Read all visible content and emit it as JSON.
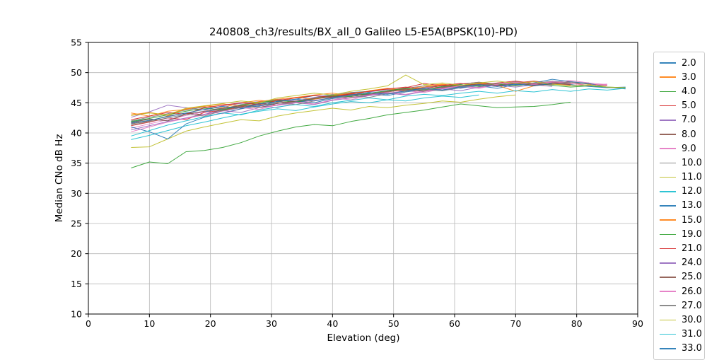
{
  "chart_data": {
    "type": "line",
    "title": "240808_ch3/results/BX_all_0 Galileo L5-E5A(BPSK(10)-PD)",
    "xlabel": "Elevation (deg)",
    "ylabel": "Median CNo dB Hz",
    "xlim": [
      0,
      90
    ],
    "ylim": [
      10,
      55
    ],
    "xticks": [
      0,
      10,
      20,
      30,
      40,
      50,
      60,
      70,
      80,
      90
    ],
    "yticks": [
      10,
      15,
      20,
      25,
      30,
      35,
      40,
      45,
      50,
      55
    ],
    "grid": true,
    "grid_color": "#b8b8b8",
    "axis_color": "#000000",
    "legend": {
      "position": "right-outside",
      "last_entry_clipped": true
    },
    "x_start": 7,
    "x_step": 3,
    "series": [
      {
        "name": "2.0",
        "color": "#1f77b4",
        "values": [
          41.8,
          42.3,
          42.0,
          43.2,
          43.5,
          44.0,
          44.6,
          44.4,
          45.3,
          45.6,
          46.2,
          46.0,
          46.7,
          46.9,
          47.3,
          47.0,
          47.6,
          47.8,
          47.5,
          48.0,
          47.8,
          48.2,
          47.9,
          48.3,
          48.0,
          47.7,
          47.5,
          47.6
        ]
      },
      {
        "name": "3.0",
        "color": "#ff7f0e",
        "values": [
          43.3,
          42.8,
          43.6,
          43.9,
          44.5,
          44.2,
          45.0,
          45.4,
          45.1,
          45.9,
          46.3,
          46.6,
          46.2,
          47.0,
          47.4,
          47.1,
          47.8,
          48.1,
          47.7,
          48.3,
          48.0,
          48.4,
          48.1,
          48.5,
          48.2,
          47.9
        ]
      },
      {
        "name": "4.0",
        "color": "#2ca02c",
        "values": [
          34.2,
          35.2,
          34.9,
          36.9,
          37.1,
          37.6,
          38.4,
          39.5,
          40.3,
          41.0,
          41.4,
          41.2,
          41.9,
          42.4,
          43.0,
          43.4,
          43.8,
          44.3,
          44.8,
          44.5,
          44.2,
          44.3,
          44.4,
          44.7,
          45.1
        ]
      },
      {
        "name": "5.0",
        "color": "#d62728",
        "values": [
          41.2,
          41.8,
          42.5,
          42.2,
          43.4,
          43.8,
          44.3,
          44.9,
          44.6,
          45.3,
          45.7,
          46.1,
          46.5,
          46.3,
          47.0,
          47.5,
          48.2,
          47.8,
          48.1,
          48.4,
          48.0,
          48.3,
          48.6,
          48.2,
          48.5,
          48.1,
          47.9
        ]
      },
      {
        "name": "7.0",
        "color": "#9467bd",
        "values": [
          42.6,
          43.5,
          44.6,
          44.2,
          43.8,
          44.5,
          44.9,
          45.2,
          45.6,
          45.3,
          45.9,
          46.4,
          46.1,
          46.8,
          47.2,
          46.9,
          47.5,
          47.8,
          47.4,
          48.0,
          47.7,
          48.1,
          47.8,
          48.2,
          47.9
        ]
      },
      {
        "name": "8.0",
        "color": "#8c564b",
        "values": [
          41.5,
          42.0,
          42.8,
          43.3,
          43.0,
          43.9,
          44.4,
          44.8,
          45.2,
          45.0,
          45.6,
          46.0,
          46.4,
          46.2,
          46.9,
          47.3,
          47.0,
          47.6,
          47.9,
          48.2,
          47.9,
          48.3,
          48.0,
          48.4,
          48.1,
          48.3
        ]
      },
      {
        "name": "9.0",
        "color": "#e377c2",
        "values": [
          40.8,
          41.5,
          42.2,
          42.9,
          43.5,
          43.2,
          44.0,
          44.5,
          44.2,
          45.0,
          45.4,
          45.8,
          45.5,
          46.2,
          46.6,
          47.0,
          46.7,
          47.3,
          47.7,
          47.4,
          48.0,
          48.3,
          48.0,
          48.4,
          48.7,
          48.3,
          48.0
        ]
      },
      {
        "name": "10.0",
        "color": "#7f7f7f",
        "values": [
          42.0,
          42.6,
          43.2,
          43.8,
          44.3,
          44.0,
          44.7,
          45.1,
          45.5,
          45.2,
          45.8,
          46.3,
          46.7,
          46.4,
          47.0,
          47.4,
          47.8,
          47.5,
          48.1,
          48.4,
          48.1,
          48.5,
          48.2,
          48.6,
          48.3
        ]
      },
      {
        "name": "11.0",
        "color": "#bcbd22",
        "values": [
          37.6,
          37.7,
          39.0,
          40.3,
          41.0,
          41.6,
          42.2,
          42.0,
          42.8,
          43.3,
          43.7,
          44.1,
          43.8,
          44.4,
          44.2,
          44.6,
          44.9,
          45.3,
          45.1,
          45.6,
          46.0,
          46.3
        ]
      },
      {
        "name": "12.0",
        "color": "#17becf",
        "values": [
          38.9,
          39.6,
          40.4,
          41.2,
          41.8,
          42.5,
          43.1,
          43.6,
          44.0,
          43.7,
          44.3,
          44.8,
          45.2,
          45.0,
          45.5,
          45.3,
          45.8,
          46.1,
          45.9,
          46.3
        ]
      },
      {
        "name": "13.0",
        "color": "#1f77b4",
        "values": [
          41.0,
          40.2,
          39.0,
          41.5,
          42.6,
          43.3,
          44.0,
          44.5,
          44.9,
          45.3,
          45.0,
          45.7,
          46.1,
          46.5,
          46.2,
          46.8,
          47.2,
          47.0,
          47.5,
          47.8,
          47.4,
          48.0,
          48.3,
          48.9,
          48.5,
          48.2,
          47.6,
          47.3
        ]
      },
      {
        "name": "15.0",
        "color": "#ff7f0e",
        "values": [
          43.0,
          43.4,
          42.9,
          44.0,
          44.4,
          44.8,
          44.5,
          45.2,
          45.6,
          45.9,
          45.6,
          46.2,
          46.6,
          46.9,
          47.3,
          47.0,
          47.6,
          48.0,
          47.7,
          48.2,
          47.9,
          46.9,
          47.8,
          48.1,
          47.9
        ]
      },
      {
        "name": "19.0",
        "color": "#2ca02c",
        "values": [
          41.9,
          42.4,
          43.0,
          43.6,
          44.1,
          43.8,
          44.6,
          45.0,
          45.4,
          45.1,
          45.7,
          46.2,
          46.0,
          46.6,
          47.0,
          47.4,
          47.1,
          47.7,
          48.0,
          47.7,
          48.1,
          47.8,
          48.2,
          47.9,
          47.6,
          47.8,
          47.6,
          47.5
        ]
      },
      {
        "name": "21.0",
        "color": "#d62728",
        "values": [
          42.2,
          42.8,
          43.4,
          43.1,
          44.2,
          44.6,
          45.0,
          44.7,
          45.4,
          45.8,
          46.2,
          45.9,
          46.5,
          46.9,
          47.3,
          47.6,
          47.3,
          47.9,
          48.2,
          47.9,
          48.3,
          48.6,
          48.2,
          48.0
        ]
      },
      {
        "name": "24.0",
        "color": "#9467bd",
        "values": [
          40.5,
          41.2,
          41.9,
          42.5,
          43.1,
          43.7,
          43.4,
          44.2,
          44.6,
          45.0,
          44.7,
          45.4,
          45.8,
          46.2,
          46.6,
          46.3,
          46.9,
          47.3,
          47.0,
          47.6,
          47.9,
          47.6,
          48.0,
          47.7
        ]
      },
      {
        "name": "25.0",
        "color": "#8c564b",
        "values": [
          41.7,
          42.3,
          42.0,
          43.1,
          43.6,
          44.1,
          44.5,
          44.2,
          44.9,
          45.3,
          45.7,
          46.1,
          45.8,
          46.4,
          46.8,
          47.2,
          46.9,
          47.5,
          47.8,
          48.1,
          47.8,
          48.2,
          47.9,
          48.3,
          48.0
        ]
      },
      {
        "name": "26.0",
        "color": "#e377c2",
        "values": [
          40.2,
          41.0,
          41.8,
          42.4,
          43.0,
          43.6,
          44.2,
          43.9,
          44.7,
          45.1,
          44.8,
          45.5,
          45.9,
          46.3,
          46.7,
          46.4,
          47.0,
          47.4,
          47.8,
          47.5,
          48.1,
          48.4,
          48.1,
          48.5,
          48.2,
          47.9,
          48.1
        ]
      },
      {
        "name": "27.0",
        "color": "#7f7f7f",
        "values": [
          41.3,
          41.9,
          42.5,
          43.1,
          42.8,
          43.7,
          44.2,
          44.6,
          45.0,
          44.7,
          45.3,
          45.8,
          46.2,
          45.9,
          46.5,
          46.9,
          47.3,
          47.0,
          47.6,
          47.9,
          48.2,
          47.9,
          48.3,
          48.0,
          48.4,
          48.1
        ]
      },
      {
        "name": "30.0",
        "color": "#bcbd22",
        "values": [
          42.9,
          43.3,
          43.0,
          44.1,
          44.5,
          44.9,
          45.3,
          45.0,
          45.8,
          46.2,
          46.6,
          46.3,
          46.9,
          47.3,
          47.8,
          49.6,
          48.0,
          48.3,
          47.9,
          48.3,
          48.6,
          48.2,
          48.5,
          48.1,
          47.8,
          48.0,
          47.6,
          47.5
        ]
      },
      {
        "name": "31.0",
        "color": "#17becf",
        "values": [
          39.5,
          40.4,
          41.3,
          42.0,
          42.7,
          43.3,
          43.0,
          43.8,
          44.3,
          44.7,
          44.4,
          45.0,
          45.4,
          45.8,
          45.5,
          46.1,
          46.4,
          46.2,
          46.6,
          46.9,
          46.6,
          47.0,
          46.8,
          47.2,
          46.9,
          47.3,
          47.1,
          47.4
        ]
      },
      {
        "name": "33.0",
        "color": "#1f77b4",
        "values": [
          41.6,
          42.1,
          42.7,
          43.3,
          43.9,
          44.4,
          44.1,
          44.8,
          45.2,
          45.6,
          45.3,
          45.9,
          46.3,
          46.7,
          46.4,
          47.0,
          47.4,
          47.1,
          47.7,
          48.0,
          47.7,
          48.1,
          47.8,
          48.2
        ]
      }
    ]
  }
}
